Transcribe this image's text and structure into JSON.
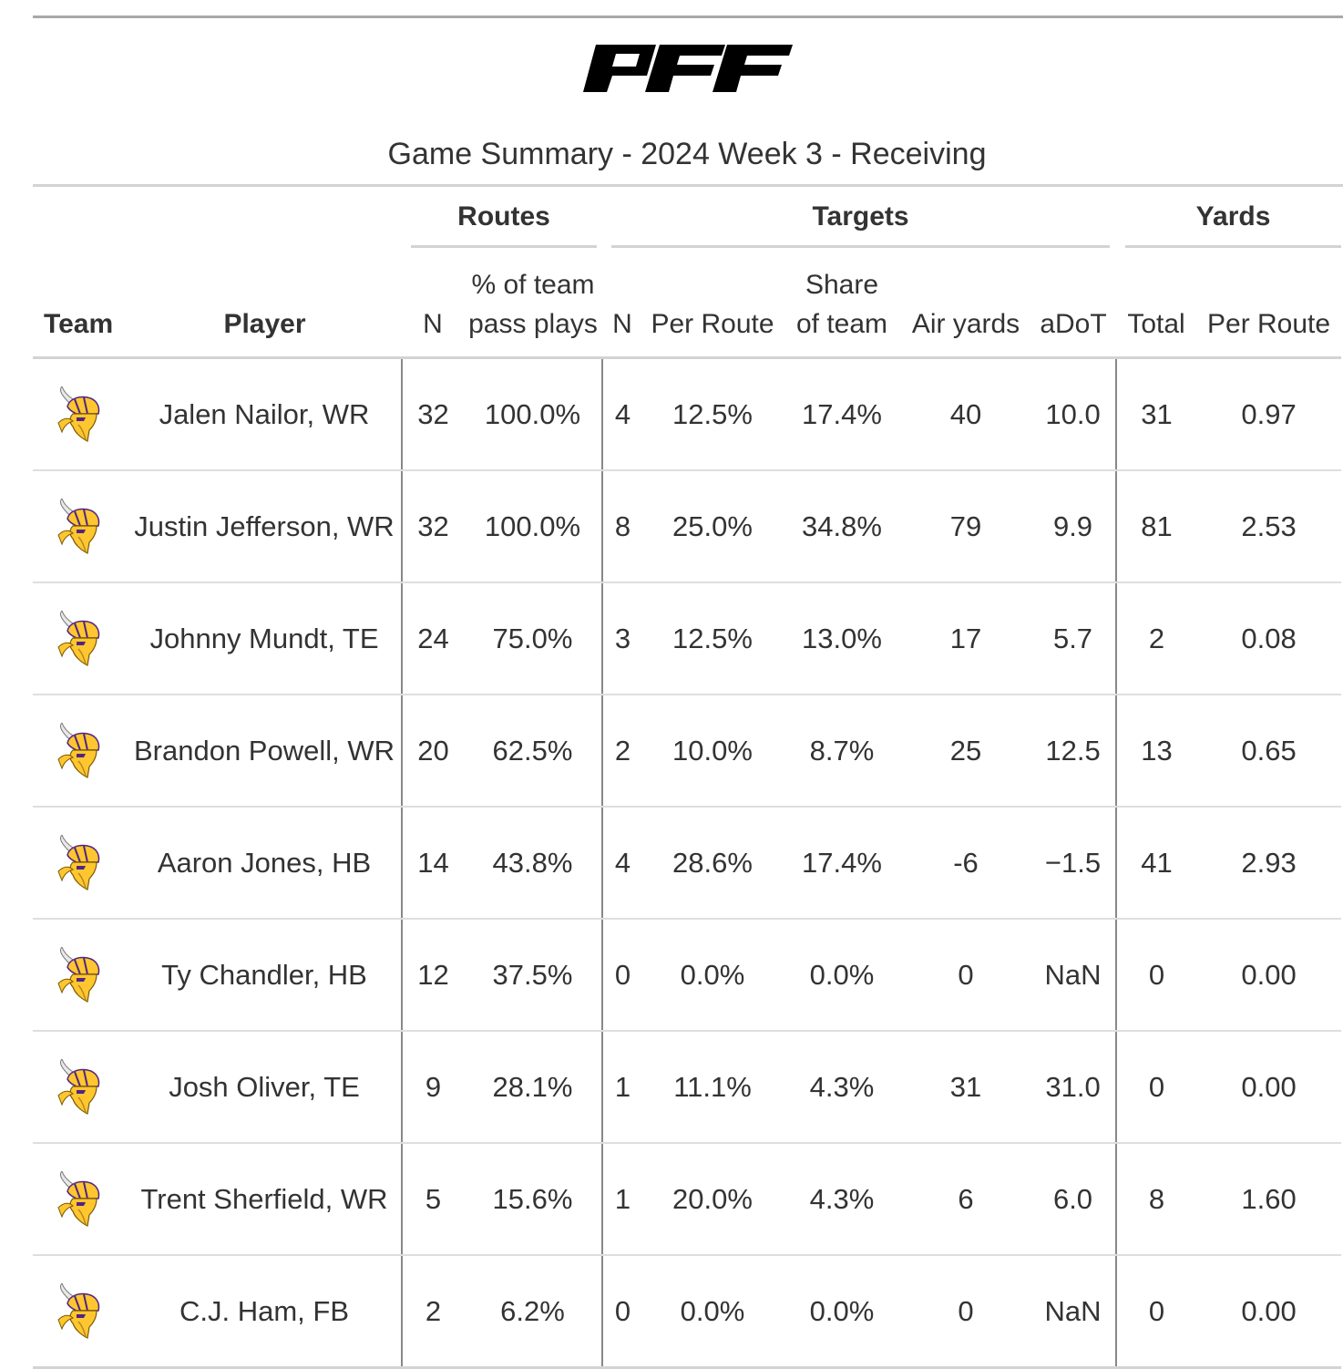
{
  "brand": {
    "logo_text": "PFF"
  },
  "subtitle": "Game Summary - 2024 Week 3 - Receiving",
  "spanners": {
    "routes": "Routes",
    "targets": "Targets",
    "yards": "Yards"
  },
  "columns": {
    "team": "Team",
    "player": "Player",
    "routes_n": "N",
    "routes_pct_line1": "% of team",
    "routes_pct_line2": "pass plays",
    "targets_n": "N",
    "targets_per_route": "Per Route",
    "targets_share_line1": "Share",
    "targets_share_line2": "of team",
    "air_yards": "Air yards",
    "adot": "aDoT",
    "yards_total": "Total",
    "yards_per_route": "Per Route"
  },
  "team_logo": {
    "icon": "vikings-helmet-icon",
    "colors": {
      "purple": "#4f2683",
      "gold": "#ffc62f"
    }
  },
  "rows": [
    {
      "player": "Jalen Nailor, WR",
      "routes_n": "32",
      "routes_pct": "100.0%",
      "targets_n": "4",
      "targets_per_route": "12.5%",
      "targets_share": "17.4%",
      "air_yards": "40",
      "adot": "10.0",
      "yards_total": "31",
      "yards_per_route": "0.97"
    },
    {
      "player": "Justin Jefferson, WR",
      "routes_n": "32",
      "routes_pct": "100.0%",
      "targets_n": "8",
      "targets_per_route": "25.0%",
      "targets_share": "34.8%",
      "air_yards": "79",
      "adot": "9.9",
      "yards_total": "81",
      "yards_per_route": "2.53"
    },
    {
      "player": "Johnny Mundt, TE",
      "routes_n": "24",
      "routes_pct": "75.0%",
      "targets_n": "3",
      "targets_per_route": "12.5%",
      "targets_share": "13.0%",
      "air_yards": "17",
      "adot": "5.7",
      "yards_total": "2",
      "yards_per_route": "0.08"
    },
    {
      "player": "Brandon Powell, WR",
      "routes_n": "20",
      "routes_pct": "62.5%",
      "targets_n": "2",
      "targets_per_route": "10.0%",
      "targets_share": "8.7%",
      "air_yards": "25",
      "adot": "12.5",
      "yards_total": "13",
      "yards_per_route": "0.65"
    },
    {
      "player": "Aaron Jones, HB",
      "routes_n": "14",
      "routes_pct": "43.8%",
      "targets_n": "4",
      "targets_per_route": "28.6%",
      "targets_share": "17.4%",
      "air_yards": "-6",
      "adot": "−1.5",
      "yards_total": "41",
      "yards_per_route": "2.93"
    },
    {
      "player": "Ty Chandler, HB",
      "routes_n": "12",
      "routes_pct": "37.5%",
      "targets_n": "0",
      "targets_per_route": "0.0%",
      "targets_share": "0.0%",
      "air_yards": "0",
      "adot": "NaN",
      "yards_total": "0",
      "yards_per_route": "0.00"
    },
    {
      "player": "Josh Oliver, TE",
      "routes_n": "9",
      "routes_pct": "28.1%",
      "targets_n": "1",
      "targets_per_route": "11.1%",
      "targets_share": "4.3%",
      "air_yards": "31",
      "adot": "31.0",
      "yards_total": "0",
      "yards_per_route": "0.00"
    },
    {
      "player": "Trent Sherfield, WR",
      "routes_n": "5",
      "routes_pct": "15.6%",
      "targets_n": "1",
      "targets_per_route": "20.0%",
      "targets_share": "4.3%",
      "air_yards": "6",
      "adot": "6.0",
      "yards_total": "8",
      "yards_per_route": "1.60"
    },
    {
      "player": "C.J. Ham, FB",
      "routes_n": "2",
      "routes_pct": "6.2%",
      "targets_n": "0",
      "targets_per_route": "0.0%",
      "targets_share": "0.0%",
      "air_yards": "0",
      "adot": "NaN",
      "yards_total": "0",
      "yards_per_route": "0.00"
    }
  ]
}
